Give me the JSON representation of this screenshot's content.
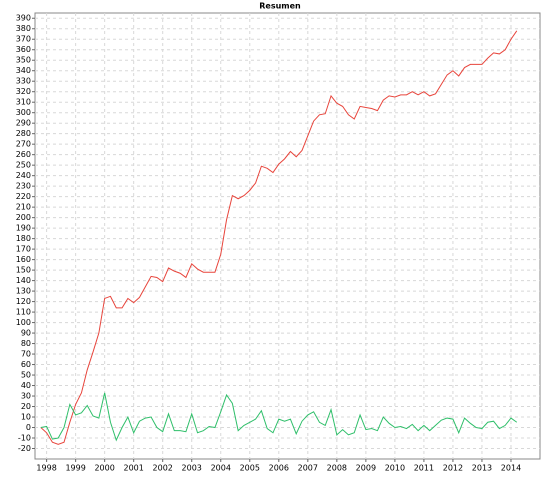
{
  "chart_data": {
    "type": "line",
    "title": "Resumen",
    "x": [
      1997.8,
      1998,
      1998.2,
      1998.4,
      1998.6,
      1998.8,
      1999,
      1999.2,
      1999.4,
      1999.6,
      1999.8,
      2000,
      2000.2,
      2000.4,
      2000.6,
      2000.8,
      2001,
      2001.2,
      2001.4,
      2001.6,
      2001.8,
      2002,
      2002.2,
      2002.4,
      2002.6,
      2002.8,
      2003,
      2003.2,
      2003.4,
      2003.6,
      2003.8,
      2004,
      2004.2,
      2004.4,
      2004.6,
      2004.8,
      2005,
      2005.2,
      2005.4,
      2005.6,
      2005.8,
      2006,
      2006.2,
      2006.4,
      2006.6,
      2006.8,
      2007,
      2007.2,
      2007.4,
      2007.6,
      2007.8,
      2008,
      2008.2,
      2008.4,
      2008.6,
      2008.8,
      2009,
      2009.2,
      2009.4,
      2009.6,
      2009.8,
      2010,
      2010.2,
      2010.4,
      2010.6,
      2010.8,
      2011,
      2011.2,
      2011.4,
      2011.6,
      2011.8,
      2012,
      2012.2,
      2012.4,
      2012.6,
      2012.8,
      2013,
      2013.2,
      2013.4,
      2013.6,
      2013.8,
      2014,
      2014.2
    ],
    "series": [
      {
        "color": "#e8453c",
        "values": [
          0,
          -5,
          -14,
          -16,
          -14,
          5,
          22,
          33,
          55,
          72,
          90,
          123,
          125,
          114,
          114,
          123,
          119,
          124,
          134,
          144,
          143,
          139,
          152,
          149,
          147,
          143,
          156,
          151,
          148,
          148,
          148,
          165,
          198,
          221,
          218,
          221,
          226,
          233,
          249,
          247,
          243,
          251,
          256,
          263,
          258,
          264,
          278,
          292,
          298,
          299,
          316,
          309,
          306,
          298,
          294,
          306,
          305,
          304,
          302,
          312,
          316,
          315,
          317,
          317,
          320,
          317,
          320,
          316,
          318,
          327,
          336,
          340,
          335,
          343,
          346,
          346,
          346,
          352,
          357,
          356,
          360,
          370,
          378
        ]
      },
      {
        "color": "#2fbf6a",
        "values": [
          0,
          1,
          -11,
          -10,
          0,
          22,
          12,
          14,
          21,
          11,
          9,
          33,
          5,
          -12,
          0,
          10,
          -5,
          6,
          9,
          10,
          0,
          -4,
          13,
          -3,
          -3,
          -4,
          13,
          -5,
          -3,
          1,
          0,
          15,
          31,
          23,
          -3,
          2,
          5,
          8,
          16,
          -1,
          -5,
          8,
          6,
          8,
          -6,
          6,
          12,
          15,
          5,
          2,
          17,
          -7,
          -2,
          -7,
          -5,
          12,
          -2,
          -1,
          -3,
          10,
          4,
          0,
          1,
          -1,
          3,
          -3,
          2,
          -3,
          2,
          7,
          9,
          8,
          -5,
          9,
          4,
          0,
          -1,
          5,
          6,
          -1,
          2,
          9,
          5
        ]
      }
    ],
    "xlim": [
      1997.6,
      2015.0
    ],
    "xticks": [
      1998,
      1999,
      2000,
      2001,
      2002,
      2003,
      2004,
      2005,
      2006,
      2007,
      2008,
      2009,
      2010,
      2011,
      2012,
      2013,
      2014
    ],
    "ylim": [
      -30,
      395
    ],
    "yticks": [
      -20,
      -10,
      0,
      10,
      20,
      30,
      40,
      50,
      60,
      70,
      80,
      90,
      100,
      110,
      120,
      130,
      140,
      150,
      160,
      170,
      180,
      190,
      200,
      210,
      220,
      230,
      240,
      250,
      260,
      270,
      280,
      290,
      300,
      310,
      320,
      330,
      340,
      350,
      360,
      370,
      380,
      390
    ],
    "grid": true
  }
}
